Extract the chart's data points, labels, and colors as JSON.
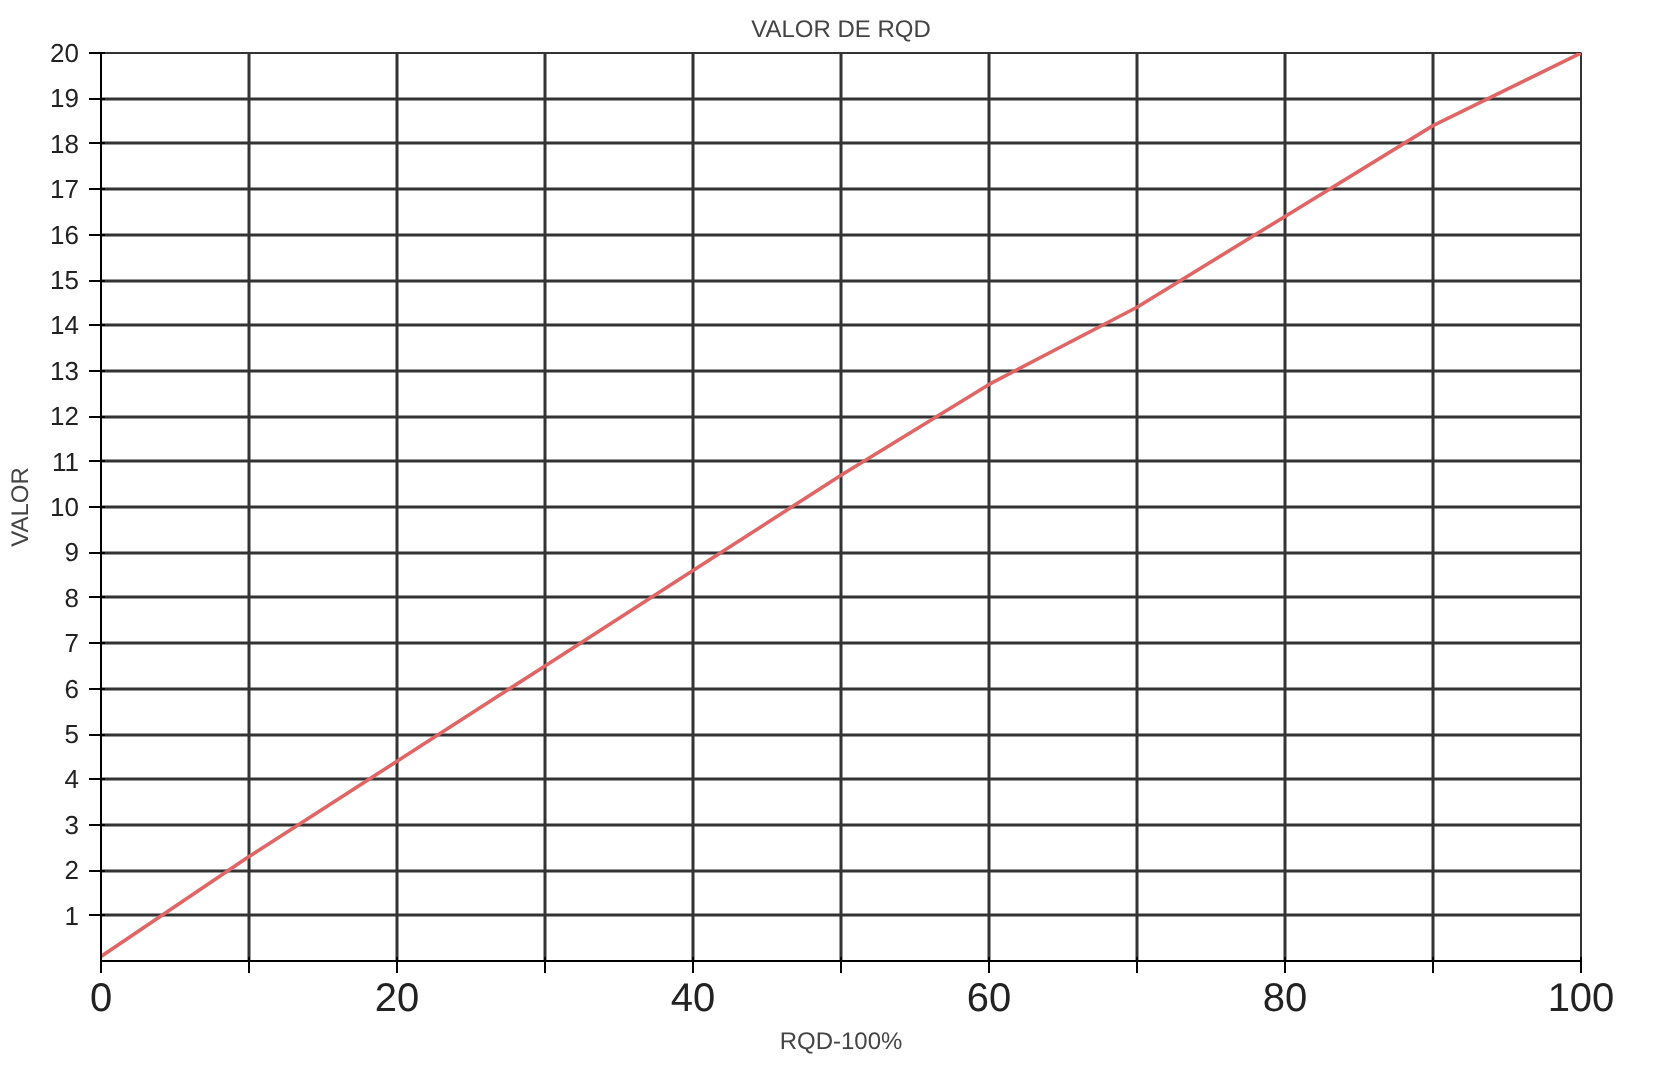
{
  "chart_data": {
    "type": "line",
    "title": "VALOR DE RQD",
    "xlabel": "RQD-100%",
    "ylabel": "VALOR",
    "x": [
      0,
      10,
      20,
      30,
      40,
      50,
      60,
      70,
      80,
      90,
      100
    ],
    "series": [
      {
        "color": "#e06666",
        "values": [
          0.1,
          2.3,
          4.4,
          6.5,
          8.6,
          10.7,
          12.7,
          14.4,
          16.4,
          18.4,
          20
        ]
      }
    ],
    "xlim": [
      0,
      100
    ],
    "ylim": [
      0,
      20
    ],
    "xticks": [
      0,
      {
        "value": 10,
        "label": null
      },
      20,
      {
        "value": 30,
        "label": null
      },
      40,
      {
        "value": 50,
        "label": null
      },
      60,
      {
        "value": 70,
        "label": null
      },
      80,
      {
        "value": 90,
        "label": null
      },
      100
    ],
    "yticks": [
      1,
      2,
      3,
      4,
      5,
      6,
      7,
      8,
      9,
      10,
      11,
      12,
      13,
      14,
      15,
      16,
      17,
      18,
      19,
      20
    ],
    "grid": true,
    "marker": "none",
    "line_style": "solid"
  }
}
